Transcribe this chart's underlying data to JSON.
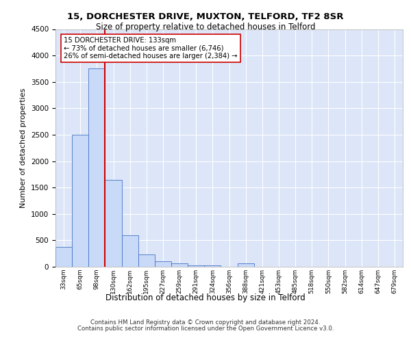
{
  "title1": "15, DORCHESTER DRIVE, MUXTON, TELFORD, TF2 8SR",
  "title2": "Size of property relative to detached houses in Telford",
  "xlabel": "Distribution of detached houses by size in Telford",
  "ylabel": "Number of detached properties",
  "footer1": "Contains HM Land Registry data © Crown copyright and database right 2024.",
  "footer2": "Contains public sector information licensed under the Open Government Licence v3.0.",
  "bins": [
    "33sqm",
    "65sqm",
    "98sqm",
    "130sqm",
    "162sqm",
    "195sqm",
    "227sqm",
    "259sqm",
    "291sqm",
    "324sqm",
    "356sqm",
    "388sqm",
    "421sqm",
    "453sqm",
    "485sqm",
    "518sqm",
    "550sqm",
    "582sqm",
    "614sqm",
    "647sqm",
    "679sqm"
  ],
  "values": [
    370,
    2500,
    3750,
    1640,
    590,
    230,
    105,
    60,
    30,
    30,
    0,
    60,
    0,
    0,
    0,
    0,
    0,
    0,
    0,
    0,
    0
  ],
  "bar_color": "#c9daf8",
  "bar_edge_color": "#4472c4",
  "property_line_color": "#cc0000",
  "annotation_text": "15 DORCHESTER DRIVE: 133sqm\n← 73% of detached houses are smaller (6,746)\n26% of semi-detached houses are larger (2,384) →",
  "annotation_box_color": "#ffffff",
  "annotation_box_edge": "#cc0000",
  "ylim": [
    0,
    4500
  ],
  "background_color": "#dce6f8",
  "grid_color": "#ffffff",
  "bar_width": 1.0
}
